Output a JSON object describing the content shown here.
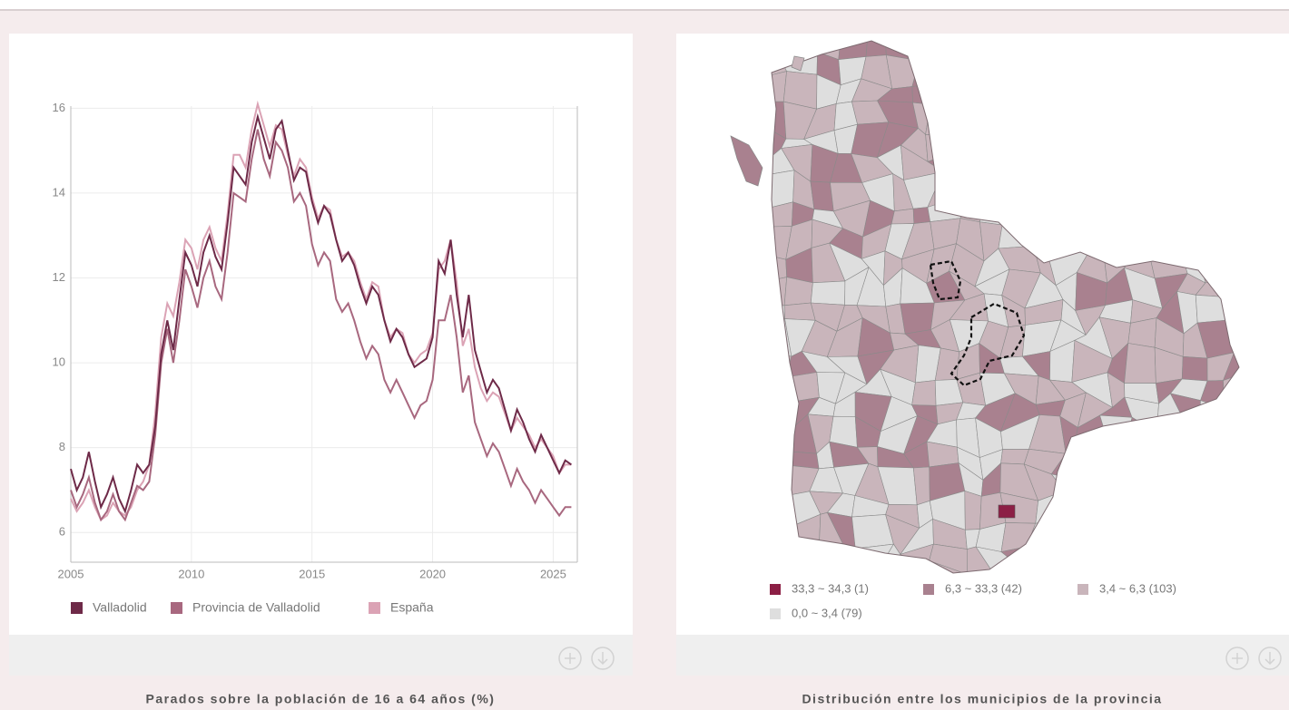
{
  "chart_data": {
    "type": "line",
    "title": "Parados sobre la población de 16 a 64 años (%)",
    "x": [
      2005,
      2005.25,
      2005.5,
      2005.75,
      2006,
      2006.25,
      2006.5,
      2006.75,
      2007,
      2007.25,
      2007.5,
      2007.75,
      2008,
      2008.25,
      2008.5,
      2008.75,
      2009,
      2009.25,
      2009.5,
      2009.75,
      2010,
      2010.25,
      2010.5,
      2010.75,
      2011,
      2011.25,
      2011.5,
      2011.75,
      2012,
      2012.25,
      2012.5,
      2012.75,
      2013,
      2013.25,
      2013.5,
      2013.75,
      2014,
      2014.25,
      2014.5,
      2014.75,
      2015,
      2015.25,
      2015.5,
      2015.75,
      2016,
      2016.25,
      2016.5,
      2016.75,
      2017,
      2017.25,
      2017.5,
      2017.75,
      2018,
      2018.25,
      2018.5,
      2018.75,
      2019,
      2019.25,
      2019.5,
      2019.75,
      2020,
      2020.25,
      2020.5,
      2020.75,
      2021,
      2021.25,
      2021.5,
      2021.75,
      2022,
      2022.25,
      2022.5,
      2022.75,
      2023,
      2023.25,
      2023.5,
      2023.75,
      2024,
      2024.25,
      2024.5,
      2024.75,
      2025,
      2025.25,
      2025.5,
      2025.75
    ],
    "series": [
      {
        "name": "Valladolid",
        "color": "#6e2a48",
        "values": [
          7.5,
          7.0,
          7.3,
          7.9,
          7.2,
          6.6,
          6.9,
          7.3,
          6.8,
          6.5,
          7.0,
          7.6,
          7.4,
          7.6,
          8.5,
          10.2,
          11.0,
          10.3,
          11.5,
          12.6,
          12.3,
          11.8,
          12.6,
          13.0,
          12.5,
          12.2,
          13.3,
          14.6,
          14.4,
          14.2,
          15.2,
          15.8,
          15.3,
          14.8,
          15.5,
          15.7,
          15.0,
          14.3,
          14.6,
          14.5,
          13.8,
          13.3,
          13.7,
          13.5,
          12.9,
          12.4,
          12.6,
          12.3,
          11.8,
          11.4,
          11.8,
          11.6,
          11.0,
          10.5,
          10.8,
          10.6,
          10.2,
          9.9,
          10.0,
          10.1,
          10.6,
          12.4,
          12.1,
          12.9,
          11.6,
          10.6,
          11.6,
          10.3,
          9.8,
          9.3,
          9.6,
          9.4,
          8.9,
          8.4,
          8.9,
          8.6,
          8.2,
          7.9,
          8.3,
          8.0,
          7.7,
          7.4,
          7.7,
          7.6
        ]
      },
      {
        "name": "Provincia de Valladolid",
        "color": "#a8687f",
        "values": [
          7.0,
          6.6,
          6.9,
          7.3,
          6.7,
          6.3,
          6.5,
          6.9,
          6.5,
          6.3,
          6.7,
          7.1,
          7.0,
          7.2,
          8.3,
          10.0,
          10.8,
          10.0,
          11.0,
          12.2,
          11.8,
          11.3,
          12.0,
          12.4,
          11.8,
          11.5,
          12.6,
          14.0,
          13.9,
          13.8,
          14.8,
          15.5,
          14.8,
          14.4,
          15.2,
          15.0,
          14.6,
          13.8,
          14.0,
          13.7,
          12.8,
          12.3,
          12.6,
          12.4,
          11.5,
          11.2,
          11.4,
          11.0,
          10.5,
          10.1,
          10.4,
          10.2,
          9.6,
          9.3,
          9.6,
          9.3,
          9.0,
          8.7,
          9.0,
          9.1,
          9.6,
          11.0,
          11.0,
          11.6,
          10.6,
          9.3,
          9.7,
          8.6,
          8.2,
          7.8,
          8.1,
          7.9,
          7.5,
          7.1,
          7.5,
          7.2,
          7.0,
          6.7,
          7.0,
          6.8,
          6.6,
          6.4,
          6.6,
          6.6
        ]
      },
      {
        "name": "España",
        "color": "#dba3b5",
        "values": [
          6.8,
          6.5,
          6.7,
          7.0,
          6.6,
          6.3,
          6.4,
          6.7,
          6.5,
          6.4,
          6.6,
          7.0,
          7.2,
          7.6,
          8.8,
          10.6,
          11.4,
          11.1,
          11.9,
          12.9,
          12.7,
          12.2,
          12.9,
          13.2,
          12.7,
          12.4,
          13.5,
          14.9,
          14.9,
          14.6,
          15.5,
          16.1,
          15.6,
          15.1,
          15.6,
          15.5,
          14.9,
          14.4,
          14.8,
          14.6,
          13.9,
          13.4,
          13.7,
          13.6,
          12.9,
          12.5,
          12.6,
          12.4,
          11.9,
          11.5,
          11.9,
          11.8,
          11.0,
          10.6,
          10.8,
          10.7,
          10.2,
          10.0,
          10.2,
          10.3,
          10.7,
          12.2,
          12.4,
          12.9,
          11.9,
          10.4,
          10.8,
          9.9,
          9.4,
          9.1,
          9.3,
          9.2,
          8.8,
          8.4,
          8.7,
          8.5,
          8.3,
          8.0,
          8.2,
          8.0,
          7.8,
          7.4,
          7.6,
          7.6
        ]
      }
    ],
    "xlim": [
      2005,
      2026
    ],
    "xticks": [
      2005,
      2010,
      2015,
      2020,
      2025
    ],
    "ylim": [
      5.3,
      16.05
    ],
    "yticks": [
      6,
      8,
      10,
      12,
      14,
      16
    ],
    "grid": true
  },
  "map": {
    "caption": "Distribución entre los municipios de la provincia",
    "legend": [
      {
        "label": "33,3 ~ 34,3 (1)",
        "color": "#8c1f45"
      },
      {
        "label": "6,3 ~ 33,3 (42)",
        "color": "#a9818f"
      },
      {
        "label": "3,4 ~ 6,3 (103)",
        "color": "#c9b5bb"
      },
      {
        "label": "0,0 ~ 3,4 (79)",
        "color": "#dedede"
      }
    ]
  }
}
